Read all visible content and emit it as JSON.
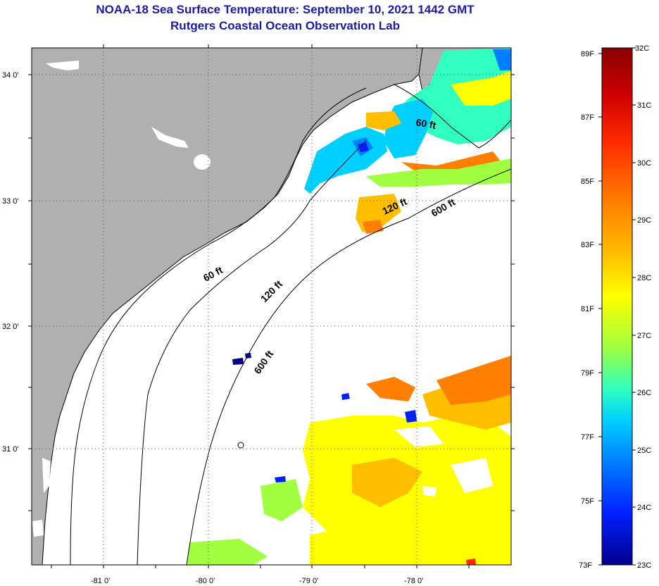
{
  "title": {
    "line1": "NOAA-18 Sea Surface Temperature:  September 10, 2021 1442 GMT",
    "line2": "Rutgers Coastal Ocean Observation Lab"
  },
  "map": {
    "lat_labels": [
      "34 0'",
      "33 0'",
      "32 0'",
      "31 0'"
    ],
    "lon_labels": [
      "-81 0'",
      "-80 0'",
      "-79 0'",
      "-78 0'"
    ],
    "lon_range": [
      -81.7,
      -77.1
    ],
    "lat_range": [
      30.2,
      34.2
    ],
    "contour_labels": [
      {
        "text": "60 ft",
        "depth": 60
      },
      {
        "text": "60 ft",
        "depth": 60
      },
      {
        "text": "120 ft",
        "depth": 120
      },
      {
        "text": "120 ft",
        "depth": 120
      },
      {
        "text": "600 ft",
        "depth": 600
      },
      {
        "text": "600 ft",
        "depth": 600
      }
    ],
    "land_color": "#b0b0b0",
    "no_data_color": "#ffffff"
  },
  "colorbar": {
    "fahrenheit_labels": [
      "89F",
      "87F",
      "85F",
      "83F",
      "81F",
      "79F",
      "77F",
      "75F",
      "73F"
    ],
    "celsius_labels": [
      "32C",
      "31C",
      "30C",
      "29C",
      "28C",
      "27C",
      "26C",
      "25C",
      "24C",
      "23C"
    ],
    "colors": [
      "#8b0000",
      "#cc0000",
      "#ff2a00",
      "#ff7f00",
      "#ffbf00",
      "#ffff00",
      "#a0ff40",
      "#30ffc0",
      "#00d0ff",
      "#0080ff",
      "#0020ff",
      "#00008b"
    ]
  }
}
